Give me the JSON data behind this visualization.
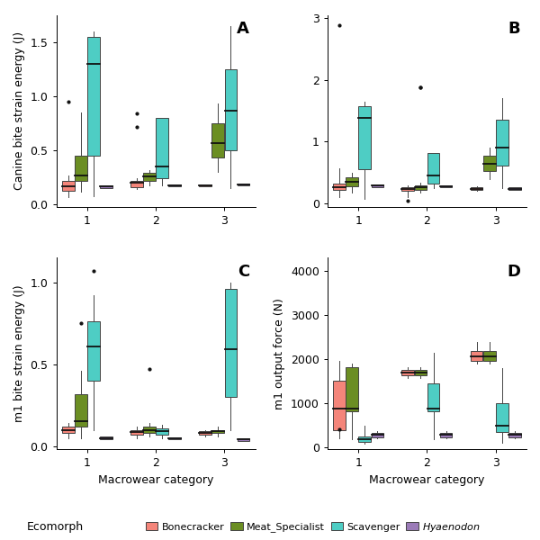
{
  "colors": {
    "Bonecracker": "#F4857A",
    "Meat_Specialist": "#6B8E23",
    "Scavenger": "#4ECDC4",
    "Hyaenodon": "#9B7BB8"
  },
  "panel_A": {
    "title": "A",
    "ylabel": "Canine bite strain energy (J)",
    "ylim": [
      -0.02,
      1.75
    ],
    "yticks": [
      0.0,
      0.5,
      1.0,
      1.5
    ],
    "groups": {
      "1": {
        "Bonecracker": {
          "q1": 0.13,
          "median": 0.17,
          "q3": 0.22,
          "whislo": 0.07,
          "whishi": 0.27,
          "fliers": [
            0.95
          ]
        },
        "Meat_Specialist": {
          "q1": 0.22,
          "median": 0.27,
          "q3": 0.45,
          "whislo": 0.12,
          "whishi": 0.85,
          "fliers": []
        },
        "Scavenger": {
          "q1": 0.45,
          "median": 1.3,
          "q3": 1.55,
          "whislo": 0.08,
          "whishi": 1.6,
          "fliers": []
        },
        "Hyaenodon": {
          "q1": 0.155,
          "median": 0.165,
          "q3": 0.175,
          "whislo": 0.155,
          "whishi": 0.175,
          "fliers": []
        }
      },
      "2": {
        "Bonecracker": {
          "q1": 0.16,
          "median": 0.2,
          "q3": 0.22,
          "whislo": 0.14,
          "whishi": 0.24,
          "fliers": [
            0.72,
            0.84
          ]
        },
        "Meat_Specialist": {
          "q1": 0.22,
          "median": 0.26,
          "q3": 0.29,
          "whislo": 0.18,
          "whishi": 0.32,
          "fliers": []
        },
        "Scavenger": {
          "q1": 0.24,
          "median": 0.35,
          "q3": 0.8,
          "whislo": 0.18,
          "whishi": 0.8,
          "fliers": []
        },
        "Hyaenodon": {
          "q1": 0.165,
          "median": 0.175,
          "q3": 0.185,
          "whislo": 0.165,
          "whishi": 0.185,
          "fliers": []
        }
      },
      "3": {
        "Bonecracker": {
          "q1": 0.165,
          "median": 0.175,
          "q3": 0.185,
          "whislo": 0.165,
          "whishi": 0.185,
          "fliers": []
        },
        "Meat_Specialist": {
          "q1": 0.43,
          "median": 0.57,
          "q3": 0.75,
          "whislo": 0.3,
          "whishi": 0.93,
          "fliers": []
        },
        "Scavenger": {
          "q1": 0.5,
          "median": 0.87,
          "q3": 1.25,
          "whislo": 0.15,
          "whishi": 1.65,
          "fliers": []
        },
        "Hyaenodon": {
          "q1": 0.175,
          "median": 0.185,
          "q3": 0.195,
          "whislo": 0.175,
          "whishi": 0.195,
          "fliers": []
        }
      }
    }
  },
  "panel_B": {
    "title": "B",
    "ylabel": "",
    "ylim": [
      -0.05,
      3.05
    ],
    "yticks": [
      0,
      1,
      2,
      3
    ],
    "groups": {
      "1": {
        "Bonecracker": {
          "q1": 0.22,
          "median": 0.27,
          "q3": 0.32,
          "whislo": 0.1,
          "whishi": 0.57,
          "fliers": [
            2.88
          ]
        },
        "Meat_Specialist": {
          "q1": 0.28,
          "median": 0.35,
          "q3": 0.42,
          "whislo": 0.18,
          "whishi": 0.5,
          "fliers": []
        },
        "Scavenger": {
          "q1": 0.55,
          "median": 1.38,
          "q3": 1.58,
          "whislo": 0.08,
          "whishi": 1.65,
          "fliers": []
        },
        "Hyaenodon": {
          "q1": 0.27,
          "median": 0.29,
          "q3": 0.31,
          "whislo": 0.27,
          "whishi": 0.31,
          "fliers": []
        }
      },
      "2": {
        "Bonecracker": {
          "q1": 0.2,
          "median": 0.23,
          "q3": 0.26,
          "whislo": 0.1,
          "whishi": 0.3,
          "fliers": [
            0.05
          ]
        },
        "Meat_Specialist": {
          "q1": 0.22,
          "median": 0.26,
          "q3": 0.3,
          "whislo": 0.18,
          "whishi": 0.34,
          "fliers": [
            1.88,
            1.88
          ]
        },
        "Scavenger": {
          "q1": 0.32,
          "median": 0.45,
          "q3": 0.82,
          "whislo": 0.25,
          "whishi": 0.82,
          "fliers": []
        },
        "Hyaenodon": {
          "q1": 0.265,
          "median": 0.28,
          "q3": 0.295,
          "whislo": 0.265,
          "whishi": 0.295,
          "fliers": []
        }
      },
      "3": {
        "Bonecracker": {
          "q1": 0.22,
          "median": 0.24,
          "q3": 0.26,
          "whislo": 0.2,
          "whishi": 0.28,
          "fliers": []
        },
        "Meat_Specialist": {
          "q1": 0.52,
          "median": 0.65,
          "q3": 0.78,
          "whislo": 0.4,
          "whishi": 0.9,
          "fliers": []
        },
        "Scavenger": {
          "q1": 0.62,
          "median": 0.9,
          "q3": 1.35,
          "whislo": 0.25,
          "whishi": 1.7,
          "fliers": []
        },
        "Hyaenodon": {
          "q1": 0.22,
          "median": 0.24,
          "q3": 0.26,
          "whislo": 0.22,
          "whishi": 0.26,
          "fliers": []
        }
      }
    }
  },
  "panel_C": {
    "title": "C",
    "ylabel": "m1 bite strain energy (J)",
    "ylim": [
      -0.02,
      1.15
    ],
    "yticks": [
      0.0,
      0.5,
      1.0
    ],
    "groups": {
      "1": {
        "Bonecracker": {
          "q1": 0.08,
          "median": 0.1,
          "q3": 0.12,
          "whislo": 0.05,
          "whishi": 0.14,
          "fliers": []
        },
        "Meat_Specialist": {
          "q1": 0.12,
          "median": 0.15,
          "q3": 0.32,
          "whislo": 0.05,
          "whishi": 0.46,
          "fliers": [
            0.75
          ]
        },
        "Scavenger": {
          "q1": 0.4,
          "median": 0.61,
          "q3": 0.76,
          "whislo": 0.1,
          "whishi": 0.92,
          "fliers": [
            1.07
          ]
        },
        "Hyaenodon": {
          "q1": 0.04,
          "median": 0.05,
          "q3": 0.06,
          "whislo": 0.04,
          "whishi": 0.06,
          "fliers": []
        }
      },
      "2": {
        "Bonecracker": {
          "q1": 0.07,
          "median": 0.085,
          "q3": 0.1,
          "whislo": 0.05,
          "whishi": 0.12,
          "fliers": []
        },
        "Meat_Specialist": {
          "q1": 0.08,
          "median": 0.1,
          "q3": 0.12,
          "whislo": 0.06,
          "whishi": 0.14,
          "fliers": [
            0.47
          ]
        },
        "Scavenger": {
          "q1": 0.07,
          "median": 0.09,
          "q3": 0.11,
          "whislo": 0.05,
          "whishi": 0.13,
          "fliers": []
        },
        "Hyaenodon": {
          "q1": 0.04,
          "median": 0.05,
          "q3": 0.055,
          "whislo": 0.04,
          "whishi": 0.055,
          "fliers": []
        }
      },
      "3": {
        "Bonecracker": {
          "q1": 0.07,
          "median": 0.08,
          "q3": 0.09,
          "whislo": 0.06,
          "whishi": 0.1,
          "fliers": []
        },
        "Meat_Specialist": {
          "q1": 0.08,
          "median": 0.09,
          "q3": 0.1,
          "whislo": 0.06,
          "whishi": 0.12,
          "fliers": []
        },
        "Scavenger": {
          "q1": 0.3,
          "median": 0.59,
          "q3": 0.96,
          "whislo": 0.1,
          "whishi": 1.0,
          "fliers": []
        },
        "Hyaenodon": {
          "q1": 0.03,
          "median": 0.04,
          "q3": 0.05,
          "whislo": 0.03,
          "whishi": 0.05,
          "fliers": []
        }
      }
    }
  },
  "panel_D": {
    "title": "D",
    "ylabel": "m1 output force (N)",
    "ylim": [
      -50,
      4300
    ],
    "yticks": [
      0,
      1000,
      2000,
      3000,
      4000
    ],
    "groups": {
      "1": {
        "Bonecracker": {
          "q1": 380,
          "median": 870,
          "q3": 1520,
          "whislo": 200,
          "whishi": 1950,
          "fliers": [
            400
          ]
        },
        "Meat_Specialist": {
          "q1": 820,
          "median": 870,
          "q3": 1820,
          "whislo": 190,
          "whishi": 1900,
          "fliers": []
        },
        "Scavenger": {
          "q1": 120,
          "median": 175,
          "q3": 250,
          "whislo": 80,
          "whishi": 490,
          "fliers": []
        },
        "Hyaenodon": {
          "q1": 230,
          "median": 280,
          "q3": 330,
          "whislo": 200,
          "whishi": 360,
          "fliers": []
        }
      },
      "2": {
        "Bonecracker": {
          "q1": 1640,
          "median": 1700,
          "q3": 1760,
          "whislo": 1580,
          "whishi": 1820,
          "fliers": []
        },
        "Meat_Specialist": {
          "q1": 1640,
          "median": 1700,
          "q3": 1760,
          "whislo": 1580,
          "whishi": 1820,
          "fliers": []
        },
        "Scavenger": {
          "q1": 820,
          "median": 875,
          "q3": 1450,
          "whislo": 190,
          "whishi": 2150,
          "fliers": []
        },
        "Hyaenodon": {
          "q1": 230,
          "median": 280,
          "q3": 330,
          "whislo": 200,
          "whishi": 360,
          "fliers": []
        }
      },
      "3": {
        "Bonecracker": {
          "q1": 1950,
          "median": 2070,
          "q3": 2180,
          "whislo": 1900,
          "whishi": 2380,
          "fliers": []
        },
        "Meat_Specialist": {
          "q1": 1950,
          "median": 2070,
          "q3": 2180,
          "whislo": 1900,
          "whishi": 2380,
          "fliers": []
        },
        "Scavenger": {
          "q1": 350,
          "median": 490,
          "q3": 1000,
          "whislo": 100,
          "whishi": 1800,
          "fliers": []
        },
        "Hyaenodon": {
          "q1": 230,
          "median": 280,
          "q3": 330,
          "whislo": 200,
          "whishi": 360,
          "fliers": []
        }
      }
    }
  },
  "ecomorphs": [
    "Bonecracker",
    "Meat_Specialist",
    "Scavenger",
    "Hyaenodon"
  ],
  "macrowear_cats": [
    "1",
    "2",
    "3"
  ],
  "xlabel": "Macrowear category",
  "background_color": "#FFFFFF"
}
